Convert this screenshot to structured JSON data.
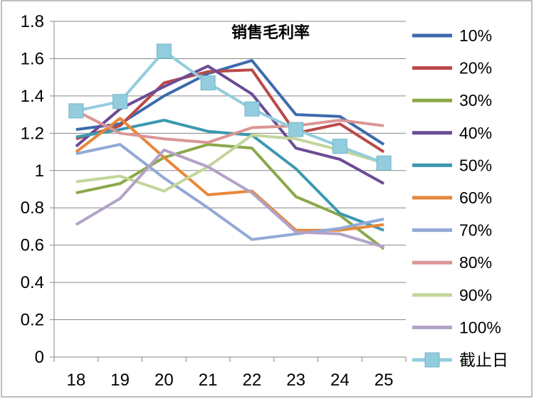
{
  "chart_data": {
    "type": "line",
    "title": "销售毛利率",
    "xlabel": "",
    "ylabel": "",
    "categories": [
      "18",
      "19",
      "20",
      "21",
      "22",
      "23",
      "24",
      "25"
    ],
    "ylim": [
      0,
      1.8
    ],
    "yticks": [
      "0",
      "0.2",
      "0.4",
      "0.6",
      "0.8",
      "1",
      "1.2",
      "1.4",
      "1.6",
      "1.8"
    ],
    "grid": "horizontal",
    "legend_position": "right",
    "series": [
      {
        "name": "10%",
        "color": "#3d6aad",
        "marker": "none",
        "values": [
          1.22,
          1.25,
          1.4,
          1.52,
          1.59,
          1.3,
          1.29,
          1.14
        ]
      },
      {
        "name": "20%",
        "color": "#b94a48",
        "marker": "none",
        "values": [
          1.17,
          1.24,
          1.47,
          1.53,
          1.54,
          1.2,
          1.25,
          1.1
        ]
      },
      {
        "name": "30%",
        "color": "#8aa84a",
        "marker": "none",
        "values": [
          0.88,
          0.93,
          1.07,
          1.14,
          1.12,
          0.86,
          0.76,
          0.58
        ]
      },
      {
        "name": "40%",
        "color": "#6b4c95",
        "marker": "none",
        "values": [
          1.13,
          1.33,
          1.45,
          1.56,
          1.41,
          1.12,
          1.06,
          0.93
        ]
      },
      {
        "name": "50%",
        "color": "#3b99b0",
        "marker": "none",
        "values": [
          1.18,
          1.22,
          1.27,
          1.21,
          1.19,
          1.01,
          0.77,
          0.68
        ]
      },
      {
        "name": "60%",
        "color": "#e8873a",
        "marker": "none",
        "values": [
          1.1,
          1.28,
          1.07,
          0.87,
          0.89,
          0.68,
          0.68,
          0.71
        ]
      },
      {
        "name": "70%",
        "color": "#92a9d6",
        "marker": "none",
        "values": [
          1.09,
          1.14,
          0.96,
          0.8,
          0.63,
          0.66,
          0.69,
          0.74
        ]
      },
      {
        "name": "80%",
        "color": "#d99694",
        "marker": "none",
        "values": [
          1.32,
          1.2,
          1.17,
          1.15,
          1.23,
          1.24,
          1.27,
          1.24
        ]
      },
      {
        "name": "90%",
        "color": "#c3d69b",
        "marker": "none",
        "values": [
          0.94,
          0.97,
          0.89,
          1.02,
          1.19,
          1.17,
          1.11,
          1.04
        ]
      },
      {
        "name": "100%",
        "color": "#b3a2c7",
        "marker": "none",
        "values": [
          0.71,
          0.85,
          1.11,
          1.02,
          0.88,
          0.67,
          0.66,
          0.59
        ]
      },
      {
        "name": "截止日",
        "color": "#93cddd",
        "marker": "square",
        "values": [
          1.32,
          1.37,
          1.64,
          1.47,
          1.33,
          1.22,
          1.13,
          1.04
        ]
      }
    ]
  }
}
